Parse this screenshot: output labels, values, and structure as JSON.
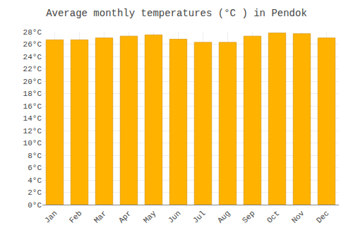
{
  "chart_data": {
    "type": "bar",
    "title": "Average monthly temperatures (°C ) in Pendok",
    "categories": [
      "Jan",
      "Feb",
      "Mar",
      "Apr",
      "May",
      "Jun",
      "Jul",
      "Aug",
      "Sep",
      "Oct",
      "Nov",
      "Dec"
    ],
    "values": [
      26.7,
      26.7,
      27.0,
      27.3,
      27.5,
      26.8,
      26.3,
      26.3,
      27.3,
      27.8,
      27.7,
      27.0
    ],
    "color": "#FFB300",
    "ylim": [
      0,
      28
    ],
    "yticks": [
      {
        "value": 0,
        "label": "0°C"
      },
      {
        "value": 2,
        "label": "2°C"
      },
      {
        "value": 4,
        "label": "4°C"
      },
      {
        "value": 6,
        "label": "6°C"
      },
      {
        "value": 8,
        "label": "8°C"
      },
      {
        "value": 10,
        "label": "10°C"
      },
      {
        "value": 12,
        "label": "12°C"
      },
      {
        "value": 14,
        "label": "14°C"
      },
      {
        "value": 16,
        "label": "16°C"
      },
      {
        "value": 18,
        "label": "18°C"
      },
      {
        "value": 20,
        "label": "20°C"
      },
      {
        "value": 22,
        "label": "22°C"
      },
      {
        "value": 24,
        "label": "24°C"
      },
      {
        "value": 26,
        "label": "26°C"
      },
      {
        "value": 28,
        "label": "28°C"
      }
    ],
    "grid": true
  }
}
